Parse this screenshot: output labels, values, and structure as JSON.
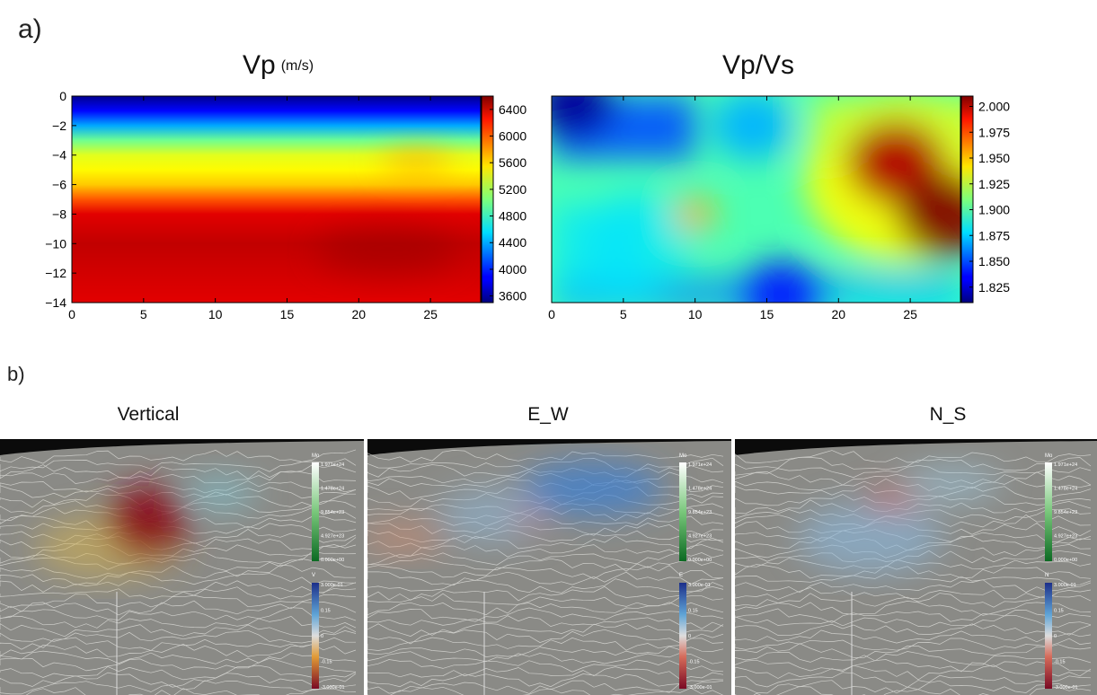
{
  "panel_a_label": "a)",
  "panel_b_label": "b)",
  "chart_data": [
    {
      "type": "heatmap",
      "title": "Vp",
      "title_unit": "(m/s)",
      "xlim": [
        0,
        28.5
      ],
      "ylim": [
        -14,
        0
      ],
      "x_ticks": [
        0,
        5,
        10,
        15,
        20,
        25
      ],
      "y_ticks": [
        0,
        -2,
        -4,
        -6,
        -8,
        -10,
        -12,
        -14
      ],
      "colorbar": {
        "min": 3500,
        "max": 6600,
        "ticks": [
          3600,
          4000,
          4400,
          4800,
          5200,
          5600,
          6000,
          6400
        ]
      },
      "colormap": "jet",
      "depth_profile": [
        {
          "depth": 0,
          "value": 3550
        },
        {
          "depth": -1,
          "value": 3900
        },
        {
          "depth": -2,
          "value": 4400
        },
        {
          "depth": -3,
          "value": 5000
        },
        {
          "depth": -4,
          "value": 5350
        },
        {
          "depth": -5,
          "value": 5450
        },
        {
          "depth": -6,
          "value": 5600
        },
        {
          "depth": -7,
          "value": 5950
        },
        {
          "depth": -8,
          "value": 6300
        },
        {
          "depth": -10,
          "value": 6400
        },
        {
          "depth": -12,
          "value": 6350
        },
        {
          "depth": -14,
          "value": 6300
        }
      ]
    },
    {
      "type": "heatmap",
      "title": "Vp/Vs",
      "xlim": [
        0,
        28.5
      ],
      "ylim": [
        -14,
        0
      ],
      "x_ticks": [
        0,
        5,
        10,
        15,
        20,
        25
      ],
      "y_ticks": [],
      "colorbar": {
        "min": 1.81,
        "max": 2.01,
        "ticks": [
          1.825,
          1.85,
          1.875,
          1.9,
          1.925,
          1.95,
          1.975,
          2.0
        ]
      },
      "colormap": "jet",
      "background_value": 1.9,
      "features": [
        {
          "x": 1.5,
          "depth": -0.5,
          "value": 1.815
        },
        {
          "x": 10,
          "depth": -8,
          "value": 1.95
        },
        {
          "x": 24,
          "depth": -4.5,
          "value": 2.0
        },
        {
          "x": 27.5,
          "depth": -8,
          "value": 2.01
        },
        {
          "x": 16,
          "depth": -13.5,
          "value": 1.84
        },
        {
          "x": 14,
          "depth": -2,
          "value": 1.87
        }
      ]
    }
  ],
  "panel_b": {
    "views": [
      {
        "title": "Vertical",
        "mo_label": "Mo",
        "mo_ticks": [
          "1.971e+24",
          "1.478e+24",
          "9.854e+23",
          "4.927e+23",
          "0.000e+00"
        ],
        "slip_label": "V",
        "slip_ticks": [
          "3.000e-01",
          "0.15",
          "0",
          "-0.15",
          "-3.000e-01"
        ]
      },
      {
        "title": "E_W",
        "mo_label": "Mo",
        "mo_ticks": [
          "1.971e+24",
          "1.478e+24",
          "9.854e+23",
          "4.927e+23",
          "0.000e+00"
        ],
        "slip_label": "E",
        "slip_ticks": [
          "3.000e-01",
          "0.15",
          "0",
          "-0.15",
          "-3.000e-01"
        ]
      },
      {
        "title": "N_S",
        "mo_label": "Mo",
        "mo_ticks": [
          "1.971e+24",
          "1.478e+24",
          "9.854e+23",
          "4.927e+23",
          "0.000e+00"
        ],
        "slip_label": "N",
        "slip_ticks": [
          "3.000e-01",
          "0.15",
          "0",
          "-0.15",
          "-3.000e-01"
        ]
      }
    ]
  }
}
